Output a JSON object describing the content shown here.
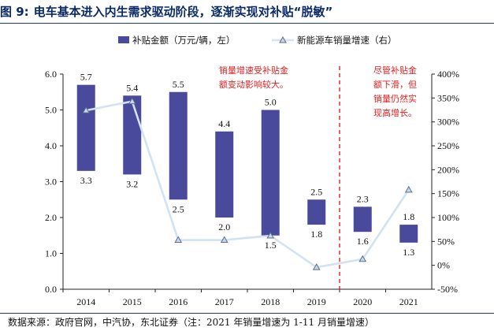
{
  "figure": {
    "number": "图 9:",
    "title": "电车基本进入内生需求驱动阶段，逐渐实现对补贴“脱敏”",
    "source": "数据来源：政府官网，中汽协，东北证券（注：2021 年销量增速为 1-11 月销量增速）"
  },
  "colors": {
    "bar": "#4a4a9c",
    "line": "#d2e2f2",
    "marker": "#5d6d86",
    "annotation": "#e02020",
    "title": "#0a2a66"
  },
  "chart_data": {
    "type": "floating-bar + line",
    "categories": [
      "2014",
      "2015",
      "2016",
      "2017",
      "2018",
      "2019",
      "2020",
      "2021"
    ],
    "series": [
      {
        "name": "补贴金额（万元/辆，左）",
        "axis": "left",
        "kind": "floating-bar",
        "low": [
          3.3,
          3.2,
          2.5,
          2.0,
          1.5,
          1.8,
          1.6,
          1.3
        ],
        "high": [
          5.7,
          5.4,
          5.5,
          4.4,
          5.0,
          2.5,
          2.3,
          1.8
        ],
        "low_labels": [
          "3.3",
          "3.2",
          "2.5",
          "2.0",
          "1.5",
          "1.8",
          "1.6",
          "1.3"
        ],
        "high_labels": [
          "5.7",
          "5.4",
          "5.5",
          "4.4",
          "5.0",
          "2.5",
          "2.3",
          "1.8"
        ]
      },
      {
        "name": "新能源车销量增速（右）",
        "axis": "right",
        "kind": "line",
        "unit": "%",
        "values": [
          324,
          343,
          53,
          53,
          62,
          -4,
          13,
          158
        ]
      }
    ],
    "legend": [
      "补贴金额（万元/辆，左）",
      "新能源车销量增速（右）"
    ],
    "left_axis": {
      "min": 0,
      "max": 6,
      "ticks": [
        "0.0",
        "1.0",
        "2.0",
        "3.0",
        "4.0",
        "5.0",
        "6.0"
      ]
    },
    "right_axis": {
      "min": -50,
      "max": 400,
      "ticks": [
        "-50%",
        "0%",
        "50%",
        "100%",
        "150%",
        "200%",
        "250%",
        "300%",
        "350%",
        "400%"
      ]
    },
    "annotations": [
      {
        "lines": [
          "销量增速受补贴金",
          "额变动影响较大。"
        ],
        "anchor": "2016-2018"
      },
      {
        "lines": [
          "尽管补贴金",
          "额下滑，但",
          "销量仍然实",
          "现高增长。"
        ],
        "anchor": "2020-2021"
      }
    ],
    "reference_line": {
      "between": [
        "2019",
        "2020"
      ],
      "style": "dashed",
      "color": "red"
    }
  }
}
